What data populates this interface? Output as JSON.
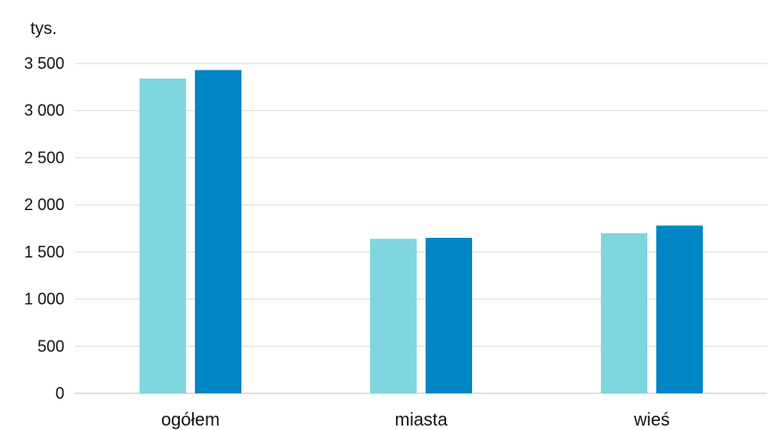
{
  "chart_data": {
    "type": "bar",
    "unit_label": "tys.",
    "categories": [
      "ogółem",
      "miasta",
      "wieś"
    ],
    "series": [
      {
        "color": "#80d6e0",
        "values": [
          3340,
          1640,
          1700
        ]
      },
      {
        "color": "#0086c5",
        "values": [
          3430,
          1650,
          1780
        ]
      }
    ],
    "ylim": [
      0,
      3500
    ],
    "yticks": [
      0,
      500,
      1000,
      1500,
      2000,
      2500,
      3000,
      3500
    ],
    "ytick_labels": [
      "0",
      "500",
      "1 000",
      "1 500",
      "2 000",
      "2 500",
      "3 000",
      "3 500"
    ],
    "grid": true,
    "legend": "none",
    "xlabel": "",
    "ylabel": ""
  }
}
